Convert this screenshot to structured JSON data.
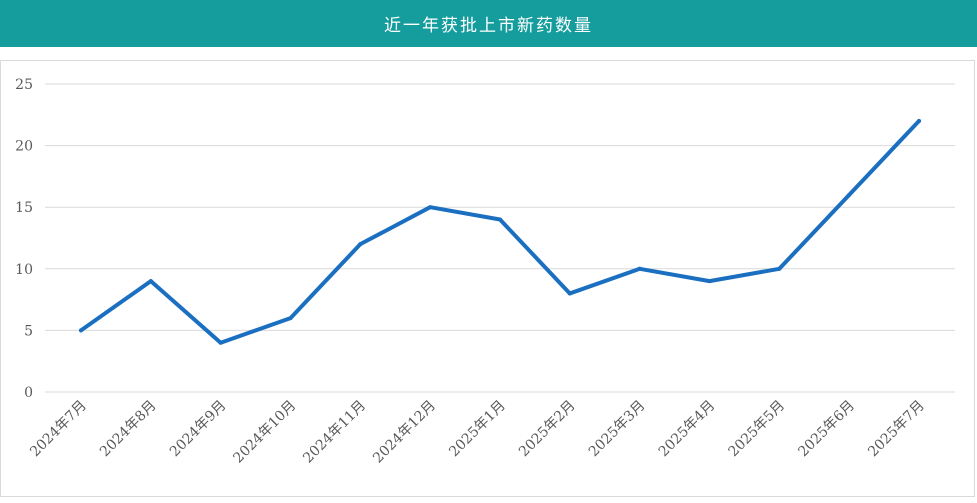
{
  "header": {
    "title": "近一年获批上市新药数量"
  },
  "colors": {
    "header_bg": "#159c9c",
    "line": "#1a6fc0",
    "grid": "#d9d9d9",
    "text": "#595959"
  },
  "chart_data": {
    "type": "line",
    "title": "",
    "xlabel": "",
    "ylabel": "",
    "categories": [
      "2024年7月",
      "2024年8月",
      "2024年9月",
      "2024年10月",
      "2024年11月",
      "2024年12月",
      "2025年1月",
      "2025年2月",
      "2025年3月",
      "2025年4月",
      "2025年5月",
      "2025年6月",
      "2025年7月"
    ],
    "series": [
      {
        "values": [
          5,
          9,
          4,
          6,
          12,
          15,
          14,
          8,
          10,
          9,
          10,
          16,
          22
        ]
      }
    ],
    "ylim": [
      0,
      25
    ],
    "yticks": [
      0,
      5,
      10,
      15,
      20,
      25
    ],
    "grid": true,
    "legend": "none"
  }
}
